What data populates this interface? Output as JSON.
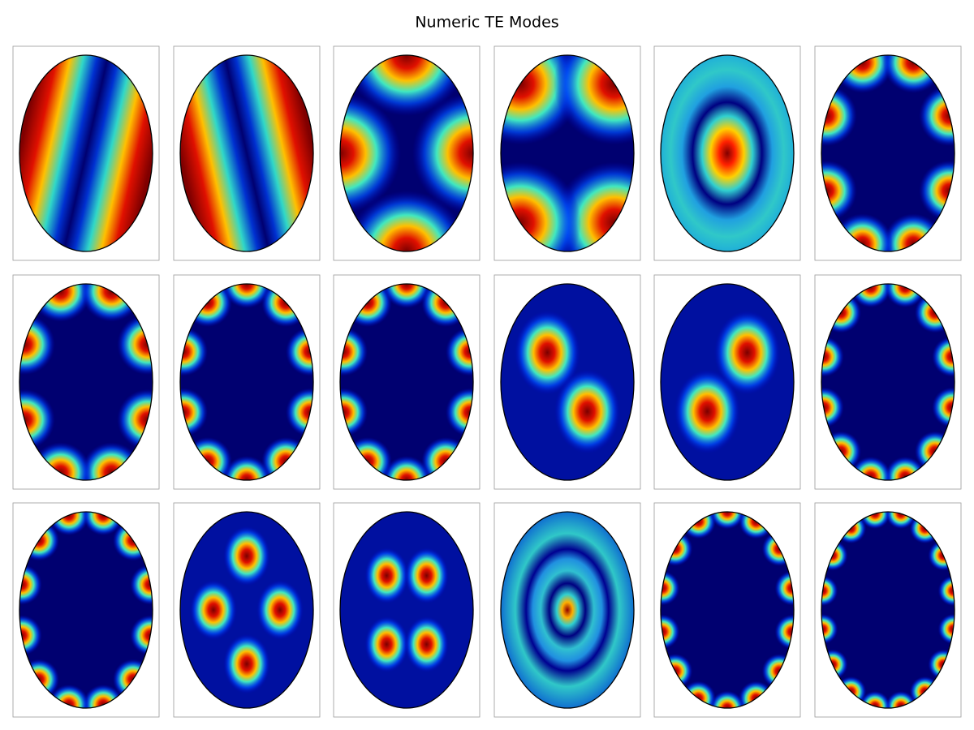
{
  "title": "Numeric TE Modes"
}
